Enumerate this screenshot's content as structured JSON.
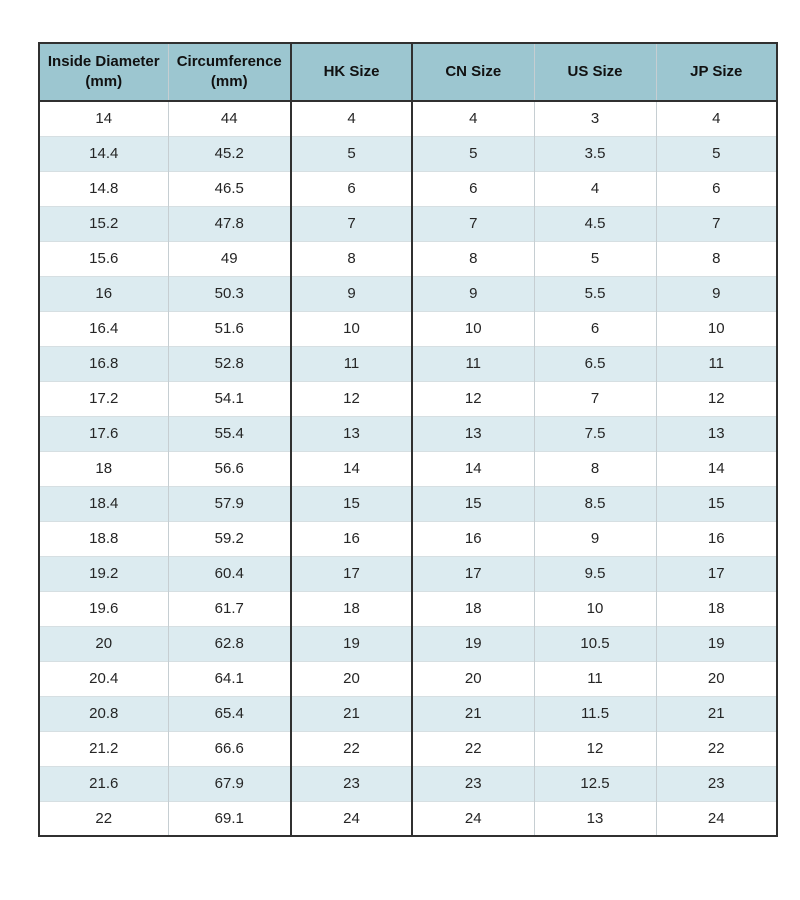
{
  "table": {
    "title": "ring-size-conversion-table",
    "headers": [
      "Inside Diameter\n(mm)",
      "Circumference\n(mm)",
      "HK Size",
      "CN Size",
      "US Size",
      "JP Size"
    ],
    "rows": [
      [
        "14",
        "44",
        "4",
        "4",
        "3",
        "4"
      ],
      [
        "14.4",
        "45.2",
        "5",
        "5",
        "3.5",
        "5"
      ],
      [
        "14.8",
        "46.5",
        "6",
        "6",
        "4",
        "6"
      ],
      [
        "15.2",
        "47.8",
        "7",
        "7",
        "4.5",
        "7"
      ],
      [
        "15.6",
        "49",
        "8",
        "8",
        "5",
        "8"
      ],
      [
        "16",
        "50.3",
        "9",
        "9",
        "5.5",
        "9"
      ],
      [
        "16.4",
        "51.6",
        "10",
        "10",
        "6",
        "10"
      ],
      [
        "16.8",
        "52.8",
        "11",
        "11",
        "6.5",
        "11"
      ],
      [
        "17.2",
        "54.1",
        "12",
        "12",
        "7",
        "12"
      ],
      [
        "17.6",
        "55.4",
        "13",
        "13",
        "7.5",
        "13"
      ],
      [
        "18",
        "56.6",
        "14",
        "14",
        "8",
        "14"
      ],
      [
        "18.4",
        "57.9",
        "15",
        "15",
        "8.5",
        "15"
      ],
      [
        "18.8",
        "59.2",
        "16",
        "16",
        "9",
        "16"
      ],
      [
        "19.2",
        "60.4",
        "17",
        "17",
        "9.5",
        "17"
      ],
      [
        "19.6",
        "61.7",
        "18",
        "18",
        "10",
        "18"
      ],
      [
        "20",
        "62.8",
        "19",
        "19",
        "10.5",
        "19"
      ],
      [
        "20.4",
        "64.1",
        "20",
        "20",
        "11",
        "20"
      ],
      [
        "20.8",
        "65.4",
        "21",
        "21",
        "11.5",
        "21"
      ],
      [
        "21.2",
        "66.6",
        "22",
        "22",
        "12",
        "22"
      ],
      [
        "21.6",
        "67.9",
        "23",
        "23",
        "12.5",
        "23"
      ],
      [
        "22",
        "69.1",
        "24",
        "24",
        "13",
        "24"
      ]
    ],
    "colors": {
      "header_bg": "#9cc6d0",
      "row_bg": "#ffffff",
      "row_alt_bg": "#dcebf0",
      "border_dark": "#303030",
      "border_light": "#c6ced2",
      "row_line": "#d6dfe2",
      "text": "#252525",
      "header_text": "#111111"
    }
  }
}
